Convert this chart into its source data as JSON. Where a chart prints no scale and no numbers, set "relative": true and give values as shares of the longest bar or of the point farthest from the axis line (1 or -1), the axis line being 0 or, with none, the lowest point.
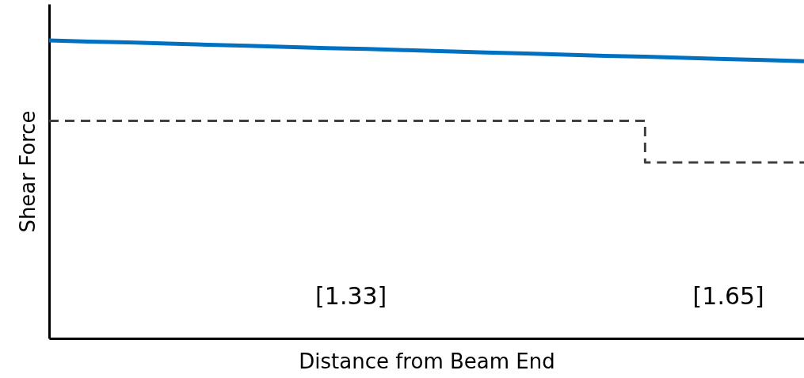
{
  "chart_data": {
    "type": "line",
    "relative": true,
    "xlabel": "Distance from Beam End",
    "ylabel": "Shear Force",
    "categories": [
      null,
      null,
      null,
      null,
      null,
      null,
      null,
      null,
      null,
      null,
      null,
      null,
      null,
      null,
      null,
      null,
      null,
      null,
      null,
      null
    ],
    "series": [
      {
        "color": "#0070c0",
        "line_style": "solid",
        "values": [
          1.0,
          0.996,
          0.993,
          0.989,
          0.985,
          0.982,
          0.978,
          0.974,
          0.971,
          0.967,
          0.963,
          0.959,
          0.956,
          0.952,
          0.948,
          0.945,
          0.941,
          0.937,
          0.934,
          0.93
        ]
      },
      {
        "type": "step",
        "color": "#404040",
        "line_style": "dashed",
        "values": [
          0.73,
          0.73,
          0.73,
          0.73,
          0.73,
          0.73,
          0.73,
          0.73,
          0.73,
          0.73,
          0.73,
          0.73,
          0.73,
          0.73,
          0.73,
          0.59,
          0.59,
          0.59,
          0.59,
          0.59
        ]
      }
    ],
    "annotations": [
      "[1.33]",
      "[1.65]"
    ]
  }
}
